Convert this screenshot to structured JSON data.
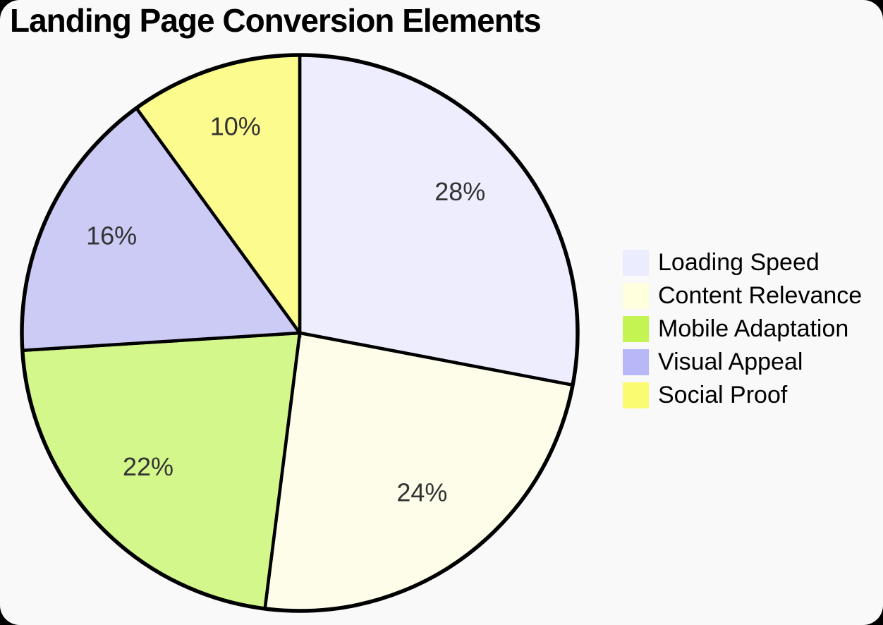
{
  "page": {
    "background_color": "#f9f9f9",
    "outside_color": "#000000"
  },
  "title": "Landing Page Conversion Elements",
  "chart_data": {
    "type": "pie",
    "title": "Landing Page Conversion Elements",
    "unit": "percent",
    "start_angle_deg": 0,
    "direction": "clockwise",
    "legend_position": "right",
    "stroke_color": "#000000",
    "label_color": "#333333",
    "segments": [
      {
        "label": "Loading Speed",
        "value": 28,
        "display": "28%",
        "slice_color": "#EDEDFD",
        "legend_color": "#ECECFF"
      },
      {
        "label": "Content Relevance",
        "value": 24,
        "display": "24%",
        "slice_color": "#FDFDEA",
        "legend_color": "#FFFFDE"
      },
      {
        "label": "Mobile Adaptation",
        "value": 22,
        "display": "22%",
        "slice_color": "#D3F78B",
        "legend_color": "#C3F452"
      },
      {
        "label": "Visual Appeal",
        "value": 16,
        "display": "16%",
        "slice_color": "#CBCBF6",
        "legend_color": "#B8B8F8"
      },
      {
        "label": "Social Proof",
        "value": 10,
        "display": "10%",
        "slice_color": "#FCFC8E",
        "legend_color": "#FBFB72"
      }
    ]
  }
}
